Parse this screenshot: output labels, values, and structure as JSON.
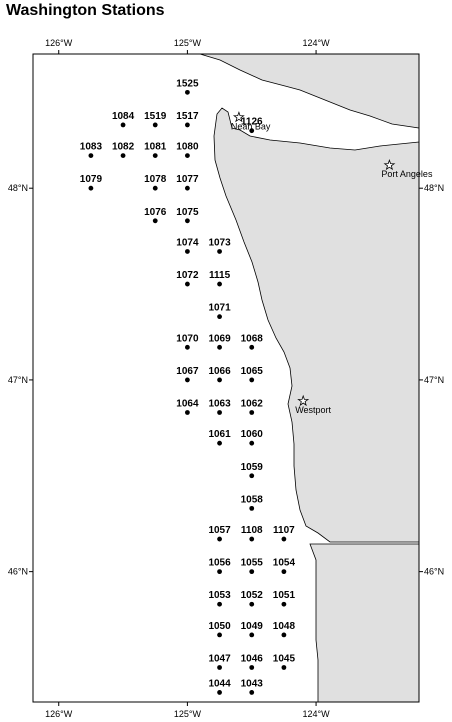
{
  "title": "Washington Stations",
  "map": {
    "lon_range": [
      -126.2,
      -123.2
    ],
    "lat_range": [
      45.32,
      48.7
    ],
    "land_color": "#e0e0e0",
    "water_color": "#ffffff"
  },
  "axes": {
    "top_ticks": [
      {
        "label": "126°W",
        "lon": -126.0
      },
      {
        "label": "125°W",
        "lon": -125.0
      },
      {
        "label": "124°W",
        "lon": -124.0
      }
    ],
    "bottom_ticks": [
      {
        "label": "126°W",
        "lon": -126.0
      },
      {
        "label": "125°W",
        "lon": -125.0
      },
      {
        "label": "124°W",
        "lon": -124.0
      }
    ],
    "left_ticks": [
      {
        "label": "48°N",
        "lat": 48.0
      },
      {
        "label": "47°N",
        "lat": 47.0
      },
      {
        "label": "46°N",
        "lat": 46.0
      }
    ],
    "right_ticks": [
      {
        "label": "48°N",
        "lat": 48.0
      },
      {
        "label": "47°N",
        "lat": 47.0
      },
      {
        "label": "46°N",
        "lat": 46.0
      }
    ]
  },
  "places": [
    {
      "name": "Neah Bay",
      "lon": -124.6,
      "lat": 48.37
    },
    {
      "name": "Port Angeles",
      "lon": -123.43,
      "lat": 48.12
    },
    {
      "name": "Westport",
      "lon": -124.1,
      "lat": 46.89
    }
  ],
  "stations": [
    {
      "id": "1525",
      "lon": -125.0,
      "lat": 48.5
    },
    {
      "id": "1084",
      "lon": -125.5,
      "lat": 48.33
    },
    {
      "id": "1519",
      "lon": -125.25,
      "lat": 48.33
    },
    {
      "id": "1517",
      "lon": -125.0,
      "lat": 48.33
    },
    {
      "id": "1126",
      "lon": -124.5,
      "lat": 48.3
    },
    {
      "id": "1083",
      "lon": -125.75,
      "lat": 48.17
    },
    {
      "id": "1082",
      "lon": -125.5,
      "lat": 48.17
    },
    {
      "id": "1081",
      "lon": -125.25,
      "lat": 48.17
    },
    {
      "id": "1080",
      "lon": -125.0,
      "lat": 48.17
    },
    {
      "id": "1079",
      "lon": -125.75,
      "lat": 48.0
    },
    {
      "id": "1078",
      "lon": -125.25,
      "lat": 48.0
    },
    {
      "id": "1077",
      "lon": -125.0,
      "lat": 48.0
    },
    {
      "id": "1076",
      "lon": -125.25,
      "lat": 47.83
    },
    {
      "id": "1075",
      "lon": -125.0,
      "lat": 47.83
    },
    {
      "id": "1074",
      "lon": -125.0,
      "lat": 47.67
    },
    {
      "id": "1073",
      "lon": -124.75,
      "lat": 47.67
    },
    {
      "id": "1072",
      "lon": -125.0,
      "lat": 47.5
    },
    {
      "id": "1115",
      "lon": -124.75,
      "lat": 47.5
    },
    {
      "id": "1071",
      "lon": -124.75,
      "lat": 47.33
    },
    {
      "id": "1070",
      "lon": -125.0,
      "lat": 47.17
    },
    {
      "id": "1069",
      "lon": -124.75,
      "lat": 47.17
    },
    {
      "id": "1068",
      "lon": -124.5,
      "lat": 47.17
    },
    {
      "id": "1067",
      "lon": -125.0,
      "lat": 47.0
    },
    {
      "id": "1066",
      "lon": -124.75,
      "lat": 47.0
    },
    {
      "id": "1065",
      "lon": -124.5,
      "lat": 47.0
    },
    {
      "id": "1064",
      "lon": -125.0,
      "lat": 46.83
    },
    {
      "id": "1063",
      "lon": -124.75,
      "lat": 46.83
    },
    {
      "id": "1062",
      "lon": -124.5,
      "lat": 46.83
    },
    {
      "id": "1061",
      "lon": -124.75,
      "lat": 46.67
    },
    {
      "id": "1060",
      "lon": -124.5,
      "lat": 46.67
    },
    {
      "id": "1059",
      "lon": -124.5,
      "lat": 46.5
    },
    {
      "id": "1058",
      "lon": -124.5,
      "lat": 46.33
    },
    {
      "id": "1057",
      "lon": -124.75,
      "lat": 46.17
    },
    {
      "id": "1108",
      "lon": -124.5,
      "lat": 46.17
    },
    {
      "id": "1107",
      "lon": -124.25,
      "lat": 46.17
    },
    {
      "id": "1056",
      "lon": -124.75,
      "lat": 46.0
    },
    {
      "id": "1055",
      "lon": -124.5,
      "lat": 46.0
    },
    {
      "id": "1054",
      "lon": -124.25,
      "lat": 46.0
    },
    {
      "id": "1053",
      "lon": -124.75,
      "lat": 45.83
    },
    {
      "id": "1052",
      "lon": -124.5,
      "lat": 45.83
    },
    {
      "id": "1051",
      "lon": -124.25,
      "lat": 45.83
    },
    {
      "id": "1050",
      "lon": -124.75,
      "lat": 45.67
    },
    {
      "id": "1049",
      "lon": -124.5,
      "lat": 45.67
    },
    {
      "id": "1048",
      "lon": -124.25,
      "lat": 45.67
    },
    {
      "id": "1047",
      "lon": -124.75,
      "lat": 45.5
    },
    {
      "id": "1046",
      "lon": -124.5,
      "lat": 45.5
    },
    {
      "id": "1045",
      "lon": -124.25,
      "lat": 45.5
    },
    {
      "id": "1044",
      "lon": -124.75,
      "lat": 45.37
    },
    {
      "id": "1043",
      "lon": -124.5,
      "lat": 45.37
    }
  ]
}
